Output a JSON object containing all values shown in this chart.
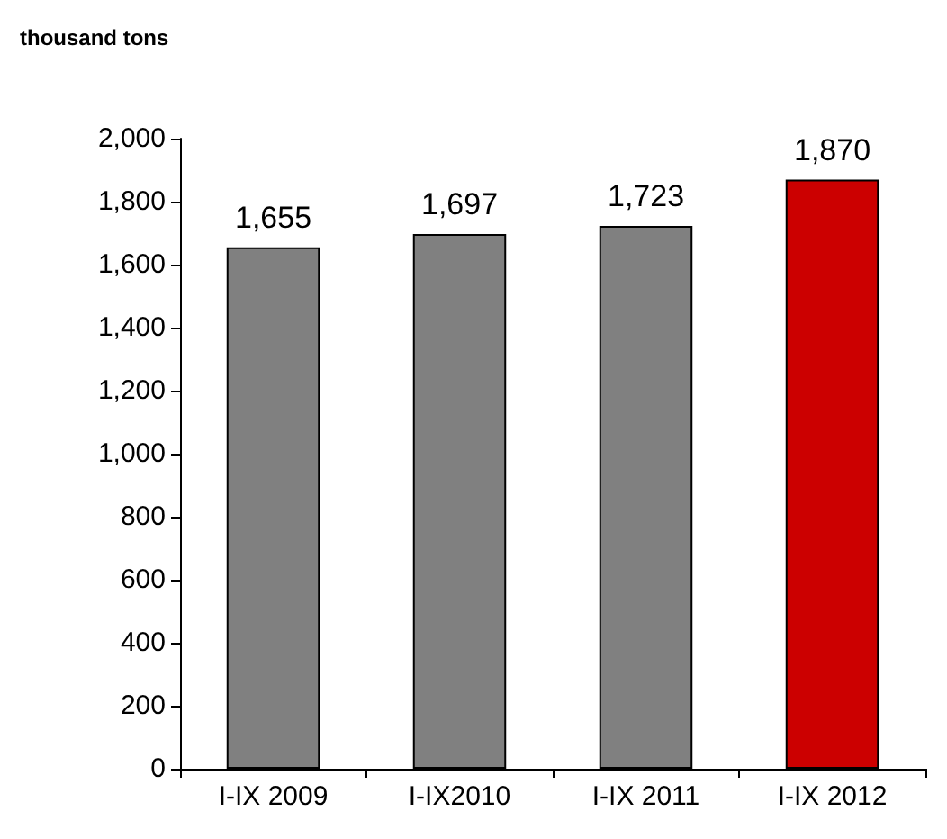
{
  "chart_data": {
    "type": "bar",
    "ylabel": "thousand tons",
    "categories": [
      "I-IX 2009",
      "I-IX2010",
      "I-IX 2011",
      "I-IX 2012"
    ],
    "values": [
      1655,
      1697,
      1723,
      1870
    ],
    "value_labels": [
      "1,655",
      "1,697",
      "1,723",
      "1,870"
    ],
    "colors": [
      "#808080",
      "#808080",
      "#808080",
      "#cc0000"
    ],
    "ylim": [
      0,
      2000
    ],
    "yticks": [
      0,
      200,
      400,
      600,
      800,
      {
        "value": 1000,
        "label": "1,000"
      },
      {
        "value": 1200,
        "label": "1,200"
      },
      {
        "value": 1400,
        "label": "1,400"
      },
      {
        "value": 1600,
        "label": "1,600"
      },
      {
        "value": 1800,
        "label": "1,800"
      },
      {
        "value": 2000,
        "label": "2,000"
      }
    ],
    "grid": false
  }
}
